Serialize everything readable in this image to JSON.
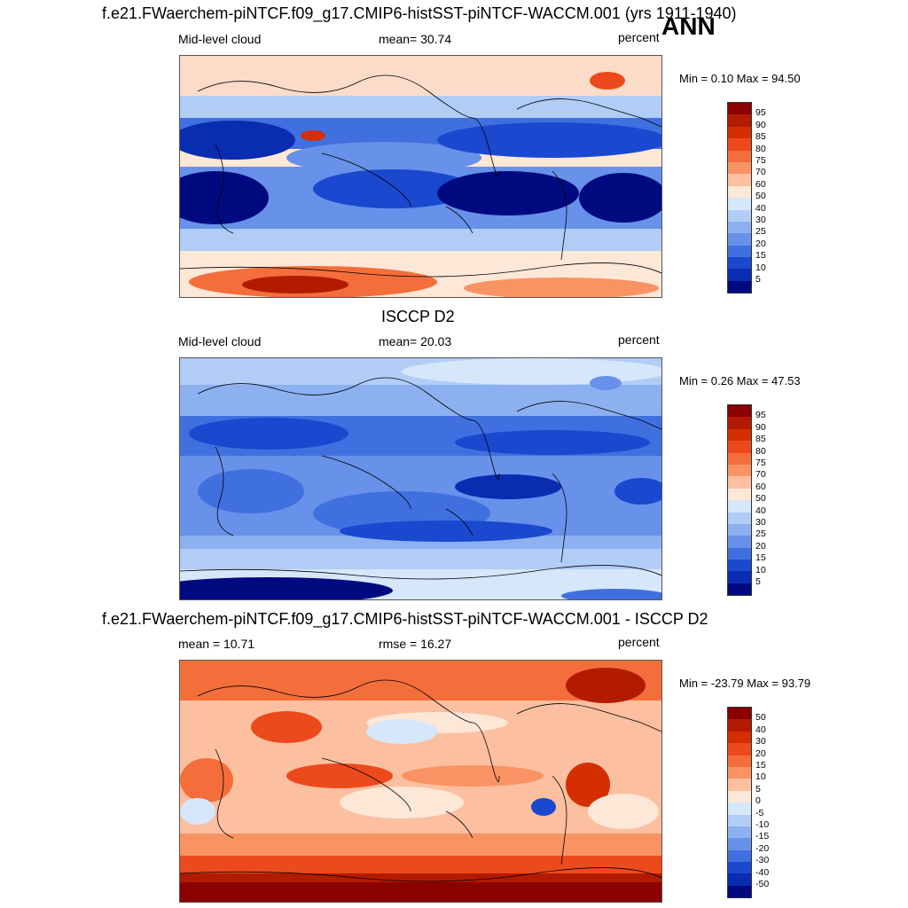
{
  "top_title": "f.e21.FWaerchem-piNTCF.f09_g17.CMIP6-histSST-piNTCF-WACCM.001 (yrs 1911-1940)",
  "season": "ANN",
  "panels": [
    {
      "title": "",
      "left_label": "Mid-level cloud",
      "center_label": "mean=  30.74",
      "units": "percent",
      "minmax": "Min =   0.10 Max =  94.50"
    },
    {
      "title": "ISCCP D2",
      "left_label": "Mid-level cloud",
      "center_label": "mean=  20.03",
      "units": "percent",
      "minmax": "Min =   0.26 Max =  47.53"
    },
    {
      "title": "f.e21.FWaerchem-piNTCF.f09_g17.CMIP6-histSST-piNTCF-WACCM.001 - ISCCP D2",
      "left_label": "mean =  10.71",
      "center_label": "rmse =  16.27",
      "units": "percent",
      "minmax": "Min = -23.79 Max =  93.79"
    }
  ],
  "colorbar_abs": {
    "labels": [
      "95",
      "90",
      "85",
      "80",
      "75",
      "70",
      "60",
      "50",
      "40",
      "30",
      "25",
      "20",
      "15",
      "10",
      "5"
    ],
    "colors": [
      "#8b0000",
      "#b31b00",
      "#d42f00",
      "#ec4a1c",
      "#f46e3c",
      "#f99363",
      "#fcbfa0",
      "#fde7d7",
      "#d6e6fb",
      "#b1cdf6",
      "#8db1f0",
      "#6891e9",
      "#4070e0",
      "#1a49d0",
      "#0a2cb0",
      "#000a80"
    ]
  },
  "colorbar_diff": {
    "labels": [
      "50",
      "40",
      "30",
      "20",
      "15",
      "10",
      "5",
      "0",
      "-5",
      "-10",
      "-15",
      "-20",
      "-30",
      "-40",
      "-50"
    ],
    "colors": [
      "#8b0000",
      "#b31b00",
      "#d42f00",
      "#ec4a1c",
      "#f46e3c",
      "#f99363",
      "#fcbfa0",
      "#fde7d7",
      "#d6e6fb",
      "#b1cdf6",
      "#8db1f0",
      "#6891e9",
      "#4070e0",
      "#1a49d0",
      "#0a2cb0",
      "#000a80"
    ]
  }
}
